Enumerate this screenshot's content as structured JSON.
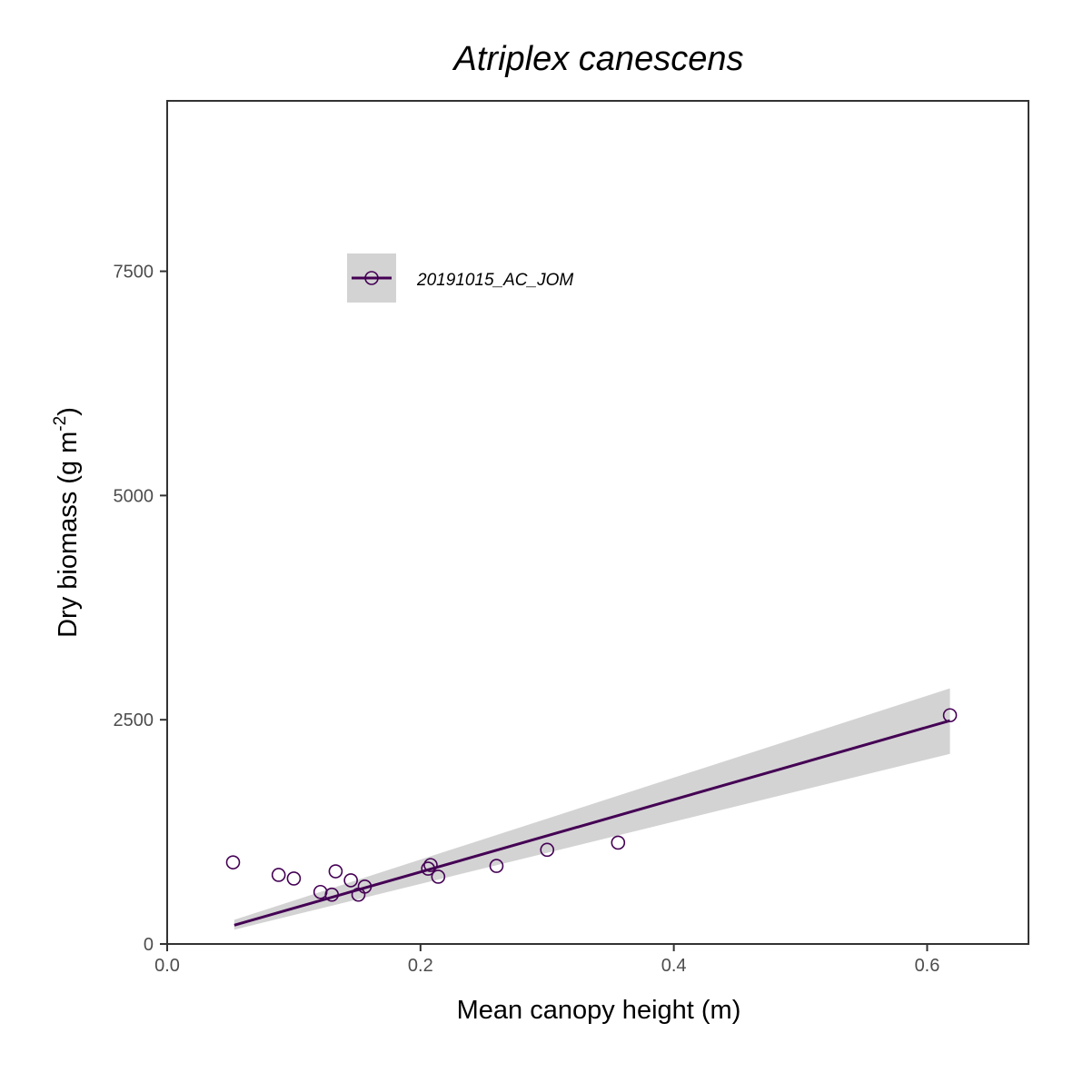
{
  "chart_data": {
    "type": "scatter",
    "title": "Atriplex canescens",
    "xlabel": "Mean canopy height (m)",
    "ylabel": {
      "main": "Dry biomass (g m",
      "superscript": "-2",
      "close": ")"
    },
    "xlim": [
      0,
      0.68
    ],
    "ylim": [
      0,
      9400
    ],
    "x_ticks": [
      0.0,
      0.2,
      0.4,
      0.6
    ],
    "x_tick_labels": [
      "0.0",
      "0.2",
      "0.4",
      "0.6"
    ],
    "y_ticks": [
      0,
      2500,
      5000,
      7500
    ],
    "y_tick_labels": [
      "0",
      "2500",
      "5000",
      "7500"
    ],
    "grid": false,
    "legend_position": "top-left",
    "series": [
      {
        "name": "20191015_AC_JOM",
        "color": "#440154",
        "marker": "open-circle",
        "points": [
          {
            "x": 0.052,
            "y": 910
          },
          {
            "x": 0.088,
            "y": 770
          },
          {
            "x": 0.1,
            "y": 730
          },
          {
            "x": 0.121,
            "y": 580
          },
          {
            "x": 0.13,
            "y": 550
          },
          {
            "x": 0.133,
            "y": 810
          },
          {
            "x": 0.145,
            "y": 710
          },
          {
            "x": 0.151,
            "y": 550
          },
          {
            "x": 0.156,
            "y": 640
          },
          {
            "x": 0.206,
            "y": 840
          },
          {
            "x": 0.208,
            "y": 880
          },
          {
            "x": 0.214,
            "y": 750
          },
          {
            "x": 0.26,
            "y": 870
          },
          {
            "x": 0.3,
            "y": 1050
          },
          {
            "x": 0.356,
            "y": 1130
          },
          {
            "x": 0.618,
            "y": 2550
          }
        ],
        "fit": {
          "x": [
            0.053,
            0.618
          ],
          "y": [
            210,
            2490
          ],
          "ci_lower": [
            160,
            2120
          ],
          "ci_upper": [
            270,
            2850
          ],
          "ci_color": "#d3d3d3"
        }
      }
    ]
  }
}
